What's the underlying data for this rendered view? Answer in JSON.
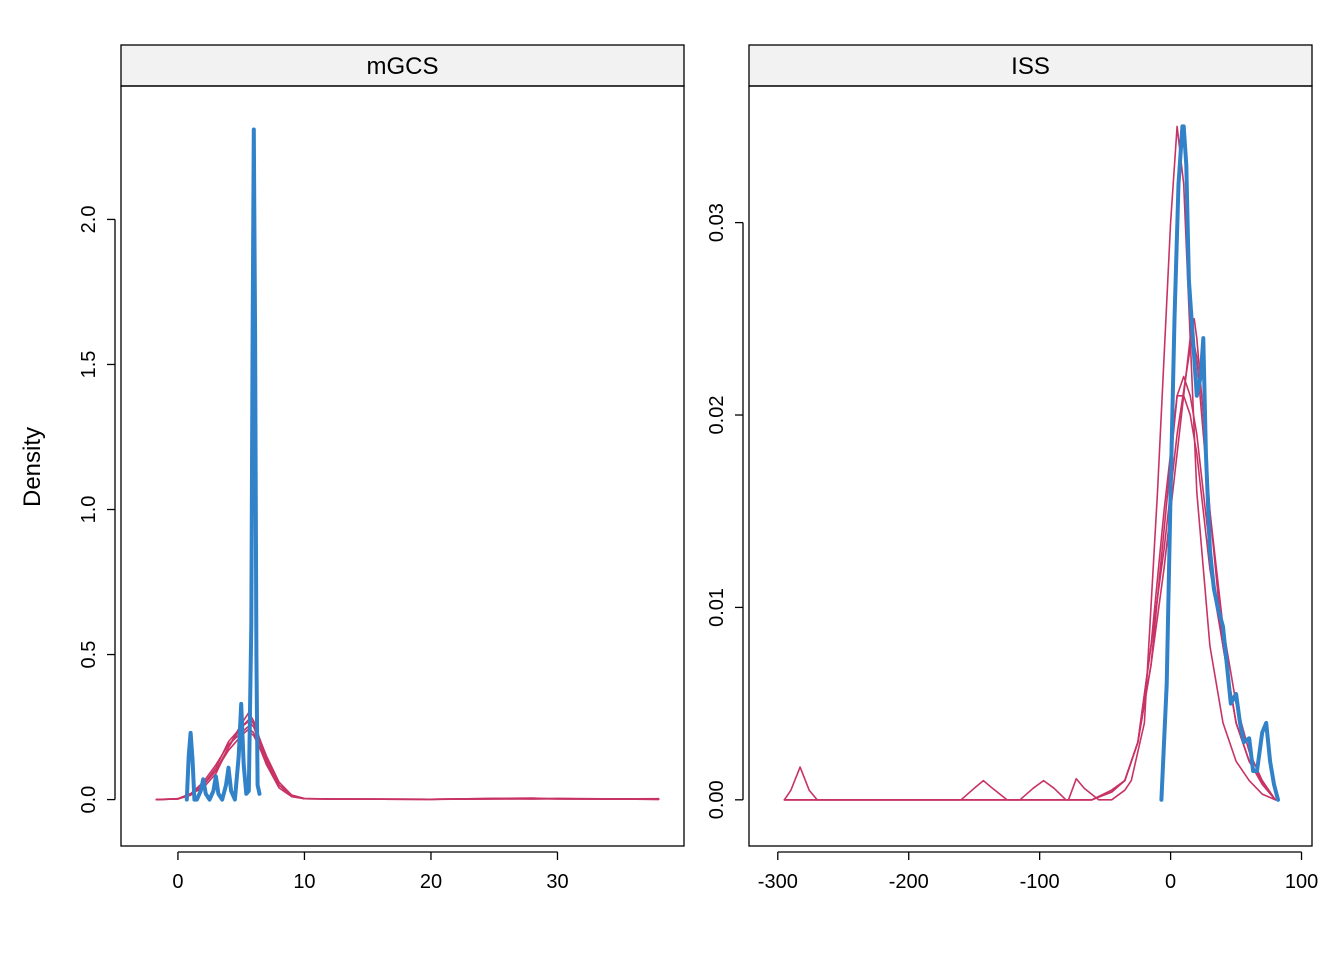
{
  "ylabel": "Density",
  "colors": {
    "observed": "#3182c8",
    "imputed": "#c83366"
  },
  "chart_data": [
    {
      "type": "line",
      "title": "mGCS",
      "xlabel": "",
      "ylabel": "Density",
      "xlim": [
        -4.5,
        40
      ],
      "ylim": [
        -0.16,
        2.46
      ],
      "xticks": [
        0,
        10,
        20,
        30
      ],
      "yticks": [
        0.0,
        0.5,
        1.0,
        1.5,
        2.0
      ],
      "xtick_labels": [
        "0",
        "10",
        "20",
        "30"
      ],
      "ytick_labels": [
        "0.0",
        "0.5",
        "1.0",
        "1.5",
        "2.0"
      ],
      "observed": {
        "x": [
          0.7,
          0.85,
          1.0,
          1.15,
          1.3,
          1.5,
          1.8,
          2.0,
          2.2,
          2.5,
          2.8,
          3.0,
          3.2,
          3.5,
          3.8,
          4.0,
          4.2,
          4.5,
          4.8,
          5.0,
          5.2,
          5.4,
          5.6,
          5.8,
          5.9,
          6.0,
          6.1,
          6.2,
          6.3,
          6.45
        ],
        "y": [
          0.0,
          0.15,
          0.23,
          0.14,
          0.0,
          0.0,
          0.03,
          0.07,
          0.02,
          0.0,
          0.03,
          0.08,
          0.02,
          0.0,
          0.05,
          0.11,
          0.03,
          0.0,
          0.15,
          0.33,
          0.12,
          0.02,
          0.03,
          0.6,
          1.6,
          2.31,
          1.6,
          0.5,
          0.05,
          0.02
        ]
      },
      "imputed": [
        {
          "x": [
            -1.7,
            0,
            1,
            2,
            3,
            4,
            5,
            5.5,
            6,
            7,
            8,
            9,
            10,
            12,
            20,
            25,
            28,
            30,
            38
          ],
          "y": [
            0.0,
            0.002,
            0.02,
            0.05,
            0.1,
            0.17,
            0.22,
            0.24,
            0.22,
            0.13,
            0.05,
            0.015,
            0.003,
            0.002,
            0.001,
            0.004,
            0.002,
            0.003,
            0.001
          ]
        },
        {
          "x": [
            -1.7,
            0,
            1,
            2,
            3,
            4,
            5,
            5.6,
            6,
            7,
            8,
            9,
            10,
            12,
            20,
            25,
            28,
            30,
            38
          ],
          "y": [
            0.0,
            0.003,
            0.02,
            0.04,
            0.09,
            0.18,
            0.26,
            0.3,
            0.27,
            0.14,
            0.05,
            0.012,
            0.003,
            0.002,
            0.001,
            0.004,
            0.005,
            0.002,
            0.001
          ]
        },
        {
          "x": [
            -1.7,
            0,
            1,
            2,
            3,
            4,
            5,
            5.6,
            6,
            7,
            8,
            9,
            10,
            12,
            20,
            25,
            28,
            30,
            38
          ],
          "y": [
            0.0,
            0.002,
            0.015,
            0.05,
            0.11,
            0.2,
            0.25,
            0.27,
            0.25,
            0.13,
            0.05,
            0.012,
            0.003,
            0.002,
            0.001,
            0.003,
            0.002,
            0.004,
            0.001
          ]
        },
        {
          "x": [
            -1.7,
            0,
            1,
            2,
            3,
            4,
            5,
            5.5,
            6,
            7,
            8,
            9,
            10,
            12,
            20,
            25,
            28,
            30,
            38
          ],
          "y": [
            0.0,
            0.003,
            0.02,
            0.06,
            0.12,
            0.19,
            0.23,
            0.25,
            0.23,
            0.12,
            0.04,
            0.01,
            0.003,
            0.002,
            0.001,
            0.002,
            0.003,
            0.002,
            0.003
          ]
        },
        {
          "x": [
            -1.7,
            0,
            1,
            2,
            3,
            4,
            5,
            5.7,
            6,
            7,
            8,
            9,
            10,
            12,
            20,
            25,
            28,
            30,
            38
          ],
          "y": [
            0.0,
            0.002,
            0.02,
            0.05,
            0.1,
            0.18,
            0.25,
            0.28,
            0.26,
            0.15,
            0.06,
            0.015,
            0.004,
            0.002,
            0.001,
            0.002,
            0.004,
            0.003,
            0.001
          ]
        }
      ]
    },
    {
      "type": "line",
      "title": "ISS",
      "xlabel": "",
      "ylabel": "",
      "xlim": [
        -322,
        108
      ],
      "ylim": [
        -0.0024,
        0.0371
      ],
      "xticks": [
        -300,
        -200,
        -100,
        0,
        100
      ],
      "yticks": [
        0.0,
        0.01,
        0.02,
        0.03
      ],
      "xtick_labels": [
        "-300",
        "-200",
        "-100",
        "0",
        "100"
      ],
      "ytick_labels": [
        "0.00",
        "0.01",
        "0.02",
        "0.03"
      ],
      "observed": {
        "x": [
          -7,
          -3,
          0,
          3,
          6,
          9,
          10,
          12,
          14,
          17,
          20,
          23,
          25,
          27,
          30,
          33,
          36,
          40,
          43,
          46,
          50,
          53,
          56,
          60,
          63,
          66,
          70,
          73,
          76,
          79,
          82
        ],
        "y": [
          0.0,
          0.006,
          0.016,
          0.025,
          0.032,
          0.035,
          0.035,
          0.033,
          0.027,
          0.024,
          0.021,
          0.022,
          0.024,
          0.018,
          0.013,
          0.011,
          0.01,
          0.009,
          0.007,
          0.005,
          0.0055,
          0.004,
          0.003,
          0.0032,
          0.0015,
          0.0015,
          0.0035,
          0.004,
          0.002,
          0.0008,
          0.0
        ]
      },
      "imputed": [
        {
          "x": [
            -295,
            -290,
            -283,
            -276,
            -270,
            -160,
            -150,
            -143,
            -136,
            -125,
            -115,
            -105,
            -97,
            -89,
            -80,
            -78,
            -72,
            -66,
            -55,
            -45,
            -35,
            -30,
            -20,
            -10,
            0,
            5,
            10,
            15,
            20,
            30,
            40,
            50,
            60,
            70,
            80
          ],
          "y": [
            0.0,
            0.0005,
            0.0017,
            0.0005,
            0.0,
            0.0,
            0.0006,
            0.001,
            0.0006,
            0.0,
            0.0,
            0.0006,
            0.001,
            0.0006,
            0.0,
            0.0,
            0.0011,
            0.0006,
            0.0,
            0.0,
            0.0005,
            0.001,
            0.004,
            0.016,
            0.03,
            0.035,
            0.032,
            0.024,
            0.016,
            0.008,
            0.004,
            0.002,
            0.001,
            0.0003,
            0.0
          ]
        },
        {
          "x": [
            -295,
            -60,
            -45,
            -35,
            -25,
            -15,
            -5,
            5,
            10,
            15,
            20,
            25,
            30,
            40,
            50,
            60,
            70,
            80
          ],
          "y": [
            0.0,
            0.0,
            0.0005,
            0.001,
            0.003,
            0.008,
            0.015,
            0.021,
            0.022,
            0.021,
            0.019,
            0.016,
            0.013,
            0.008,
            0.004,
            0.002,
            0.001,
            0.0
          ]
        },
        {
          "x": [
            -295,
            -60,
            -45,
            -35,
            -25,
            -15,
            -5,
            5,
            10,
            15,
            20,
            25,
            30,
            40,
            50,
            60,
            70,
            80
          ],
          "y": [
            0.0,
            0.0,
            0.0004,
            0.001,
            0.003,
            0.007,
            0.014,
            0.021,
            0.021,
            0.02,
            0.018,
            0.015,
            0.012,
            0.008,
            0.004,
            0.002,
            0.0008,
            0.0
          ]
        },
        {
          "x": [
            -295,
            -60,
            -45,
            -35,
            -25,
            -15,
            -5,
            5,
            15,
            18,
            20,
            25,
            30,
            40,
            50,
            60,
            70,
            80
          ],
          "y": [
            0.0,
            0.0,
            0.0005,
            0.001,
            0.003,
            0.007,
            0.012,
            0.018,
            0.024,
            0.025,
            0.024,
            0.02,
            0.015,
            0.008,
            0.004,
            0.002,
            0.0009,
            0.0
          ]
        },
        {
          "x": [
            -295,
            -60,
            -45,
            -35,
            -25,
            -15,
            -5,
            5,
            15,
            17,
            20,
            25,
            30,
            40,
            50,
            60,
            70,
            80
          ],
          "y": [
            0.0,
            0.0,
            0.0005,
            0.001,
            0.003,
            0.008,
            0.013,
            0.019,
            0.0235,
            0.024,
            0.023,
            0.019,
            0.015,
            0.009,
            0.005,
            0.0025,
            0.001,
            0.0
          ]
        }
      ]
    }
  ]
}
